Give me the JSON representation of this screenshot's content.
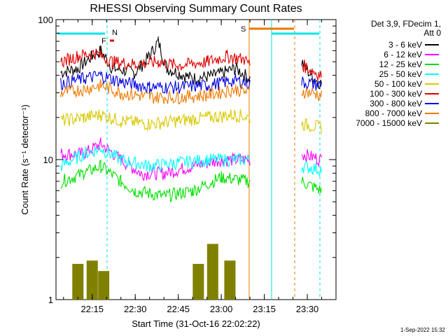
{
  "chart_data": {
    "type": "line",
    "title": "RHESSI Observing Summary Count Rates",
    "xlabel": "Start Time (31-Oct-16 22:02:22)",
    "ylabel": "Count Rate (s⁻¹ detector⁻¹)",
    "yscale": "log",
    "ylim": [
      1,
      100
    ],
    "xlim": [
      "22:02:22",
      "23:40:00"
    ],
    "x_ticks": [
      "22:15",
      "22:30",
      "22:45",
      "23:00",
      "23:15",
      "23:30"
    ],
    "y_ticks": [
      "1",
      "10",
      "100"
    ],
    "legend_header": [
      "Det 3,9, FDecim 1,",
      "Att 0"
    ],
    "legend_position": "top-right",
    "footer_date": "1-Sep-2022 15:32",
    "flags": [
      {
        "label": "N",
        "color": "#00e5e5"
      },
      {
        "label": "F",
        "color": "#e00000"
      },
      {
        "label": "S",
        "color": "#e87800"
      }
    ],
    "series": [
      {
        "name": "3 - 6 keV",
        "color": "#000000",
        "values": [
          {
            "t": "22:04",
            "v": 42
          },
          {
            "t": "22:10",
            "v": 45
          },
          {
            "t": "22:15",
            "v": 55
          },
          {
            "t": "22:18",
            "v": 60
          },
          {
            "t": "22:22",
            "v": 45
          },
          {
            "t": "22:30",
            "v": 42
          },
          {
            "t": "22:35",
            "v": 55
          },
          {
            "t": "22:38",
            "v": 70
          },
          {
            "t": "22:41",
            "v": 45
          },
          {
            "t": "22:50",
            "v": 38
          },
          {
            "t": "22:58",
            "v": 40
          },
          {
            "t": "23:05",
            "v": 45
          },
          {
            "t": "23:10",
            "v": 38
          },
          {
            "t": "23:28",
            "v": 50
          },
          {
            "t": "23:32",
            "v": 38
          },
          {
            "t": "23:35",
            "v": 35
          }
        ]
      },
      {
        "name": "6 - 12 keV",
        "color": "#ff00ff",
        "values": [
          {
            "t": "22:04",
            "v": 11
          },
          {
            "t": "22:12",
            "v": 11
          },
          {
            "t": "22:18",
            "v": 13
          },
          {
            "t": "22:25",
            "v": 10
          },
          {
            "t": "22:32",
            "v": 8
          },
          {
            "t": "22:40",
            "v": 8
          },
          {
            "t": "22:50",
            "v": 9
          },
          {
            "t": "23:00",
            "v": 10
          },
          {
            "t": "23:10",
            "v": 10
          },
          {
            "t": "23:28",
            "v": 11
          },
          {
            "t": "23:35",
            "v": 10
          }
        ]
      },
      {
        "name": "12 - 25 keV",
        "color": "#00e000",
        "values": [
          {
            "t": "22:04",
            "v": 7
          },
          {
            "t": "22:12",
            "v": 8
          },
          {
            "t": "22:18",
            "v": 9
          },
          {
            "t": "22:25",
            "v": 7
          },
          {
            "t": "22:30",
            "v": 6
          },
          {
            "t": "22:40",
            "v": 5.5
          },
          {
            "t": "22:50",
            "v": 6
          },
          {
            "t": "23:00",
            "v": 7.5
          },
          {
            "t": "23:10",
            "v": 7
          },
          {
            "t": "23:28",
            "v": 7
          },
          {
            "t": "23:35",
            "v": 6
          }
        ]
      },
      {
        "name": "25 - 50 keV",
        "color": "#00ffff",
        "values": [
          {
            "t": "22:04",
            "v": 9
          },
          {
            "t": "22:12",
            "v": 11
          },
          {
            "t": "22:18",
            "v": 12
          },
          {
            "t": "22:25",
            "v": 10
          },
          {
            "t": "22:35",
            "v": 9
          },
          {
            "t": "22:45",
            "v": 9.5
          },
          {
            "t": "22:55",
            "v": 10
          },
          {
            "t": "23:05",
            "v": 10
          },
          {
            "t": "23:10",
            "v": 10
          },
          {
            "t": "23:28",
            "v": 9
          },
          {
            "t": "23:35",
            "v": 8.5
          }
        ]
      },
      {
        "name": "50 - 100 keV",
        "color": "#d8c800",
        "values": [
          {
            "t": "22:04",
            "v": 19
          },
          {
            "t": "22:12",
            "v": 20
          },
          {
            "t": "22:18",
            "v": 21
          },
          {
            "t": "22:25",
            "v": 19
          },
          {
            "t": "22:35",
            "v": 18
          },
          {
            "t": "22:45",
            "v": 19
          },
          {
            "t": "22:55",
            "v": 20
          },
          {
            "t": "23:05",
            "v": 21
          },
          {
            "t": "23:10",
            "v": 20
          },
          {
            "t": "23:28",
            "v": 18
          },
          {
            "t": "23:35",
            "v": 17
          }
        ]
      },
      {
        "name": "100 - 300 keV",
        "color": "#e00000",
        "values": [
          {
            "t": "22:04",
            "v": 50
          },
          {
            "t": "22:10",
            "v": 55
          },
          {
            "t": "22:16",
            "v": 58
          },
          {
            "t": "22:22",
            "v": 50
          },
          {
            "t": "22:30",
            "v": 48
          },
          {
            "t": "22:38",
            "v": 50
          },
          {
            "t": "22:45",
            "v": 47
          },
          {
            "t": "22:55",
            "v": 50
          },
          {
            "t": "23:02",
            "v": 55
          },
          {
            "t": "23:08",
            "v": 52
          },
          {
            "t": "23:10",
            "v": 48
          },
          {
            "t": "23:28",
            "v": 48
          },
          {
            "t": "23:32",
            "v": 43
          },
          {
            "t": "23:35",
            "v": 40
          }
        ]
      },
      {
        "name": "300 - 800 keV",
        "color": "#0000e0",
        "values": [
          {
            "t": "22:04",
            "v": 35
          },
          {
            "t": "22:12",
            "v": 38
          },
          {
            "t": "22:18",
            "v": 40
          },
          {
            "t": "22:25",
            "v": 36
          },
          {
            "t": "22:35",
            "v": 33
          },
          {
            "t": "22:45",
            "v": 33
          },
          {
            "t": "22:55",
            "v": 34
          },
          {
            "t": "23:05",
            "v": 37
          },
          {
            "t": "23:10",
            "v": 35
          },
          {
            "t": "23:28",
            "v": 36
          },
          {
            "t": "23:35",
            "v": 34
          }
        ]
      },
      {
        "name": "800 - 7000 keV",
        "color": "#f07800",
        "values": [
          {
            "t": "22:04",
            "v": 30
          },
          {
            "t": "22:12",
            "v": 32
          },
          {
            "t": "22:18",
            "v": 34
          },
          {
            "t": "22:25",
            "v": 30
          },
          {
            "t": "22:35",
            "v": 28
          },
          {
            "t": "22:45",
            "v": 28
          },
          {
            "t": "22:55",
            "v": 29
          },
          {
            "t": "23:05",
            "v": 32
          },
          {
            "t": "23:10",
            "v": 30
          },
          {
            "t": "23:28",
            "v": 31
          },
          {
            "t": "23:35",
            "v": 29
          }
        ]
      },
      {
        "name": "7000 - 15000 keV",
        "color": "#808000",
        "values": [
          {
            "t": "22:08",
            "v": 1
          },
          {
            "t": "22:10",
            "v": 1.8
          },
          {
            "t": "22:13",
            "v": 1
          },
          {
            "t": "22:15",
            "v": 1.9
          },
          {
            "t": "22:17",
            "v": 1
          },
          {
            "t": "22:19",
            "v": 1.6
          },
          {
            "t": "22:21",
            "v": 1
          },
          {
            "t": "22:50",
            "v": 1
          },
          {
            "t": "22:52",
            "v": 1.8
          },
          {
            "t": "22:55",
            "v": 1
          },
          {
            "t": "22:57",
            "v": 2.5
          },
          {
            "t": "23:00",
            "v": 1
          },
          {
            "t": "23:03",
            "v": 1.9
          },
          {
            "t": "23:06",
            "v": 1
          }
        ]
      }
    ]
  }
}
